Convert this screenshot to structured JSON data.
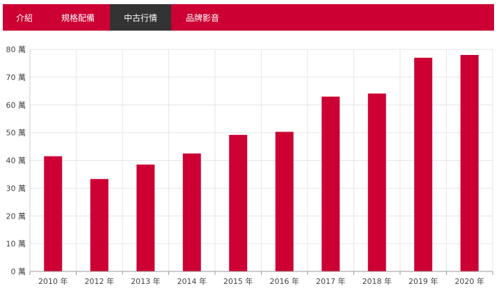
{
  "nav": {
    "tabs": [
      {
        "label": "介紹",
        "active": false
      },
      {
        "label": "規格配備",
        "active": false
      },
      {
        "label": "中古行情",
        "active": true
      },
      {
        "label": "品牌影音",
        "active": false
      }
    ]
  },
  "colors": {
    "accent": "#cc0033",
    "active_tab": "#333333",
    "bar": "#cc0033",
    "grid": "#e6e6e6"
  },
  "chart_data": {
    "type": "bar",
    "categories": [
      "2010 年",
      "2012 年",
      "2013 年",
      "2014 年",
      "2015 年",
      "2016 年",
      "2017 年",
      "2018 年",
      "2019 年",
      "2020 年"
    ],
    "values": [
      41.5,
      33.3,
      38.5,
      42.5,
      49.2,
      50.3,
      63.0,
      64.1,
      77.0,
      78.0
    ],
    "ylim": [
      0,
      80
    ],
    "yticks": [
      {
        "value": 0,
        "label": "0 萬"
      },
      {
        "value": 10,
        "label": "10 萬"
      },
      {
        "value": 20,
        "label": "20 萬"
      },
      {
        "value": 30,
        "label": "30 萬"
      },
      {
        "value": 40,
        "label": "40 萬"
      },
      {
        "value": 50,
        "label": "50 萬"
      },
      {
        "value": 60,
        "label": "60 萬"
      },
      {
        "value": 70,
        "label": "70 萬"
      },
      {
        "value": 80,
        "label": "80 萬"
      }
    ],
    "grid": true,
    "legend": "none"
  }
}
